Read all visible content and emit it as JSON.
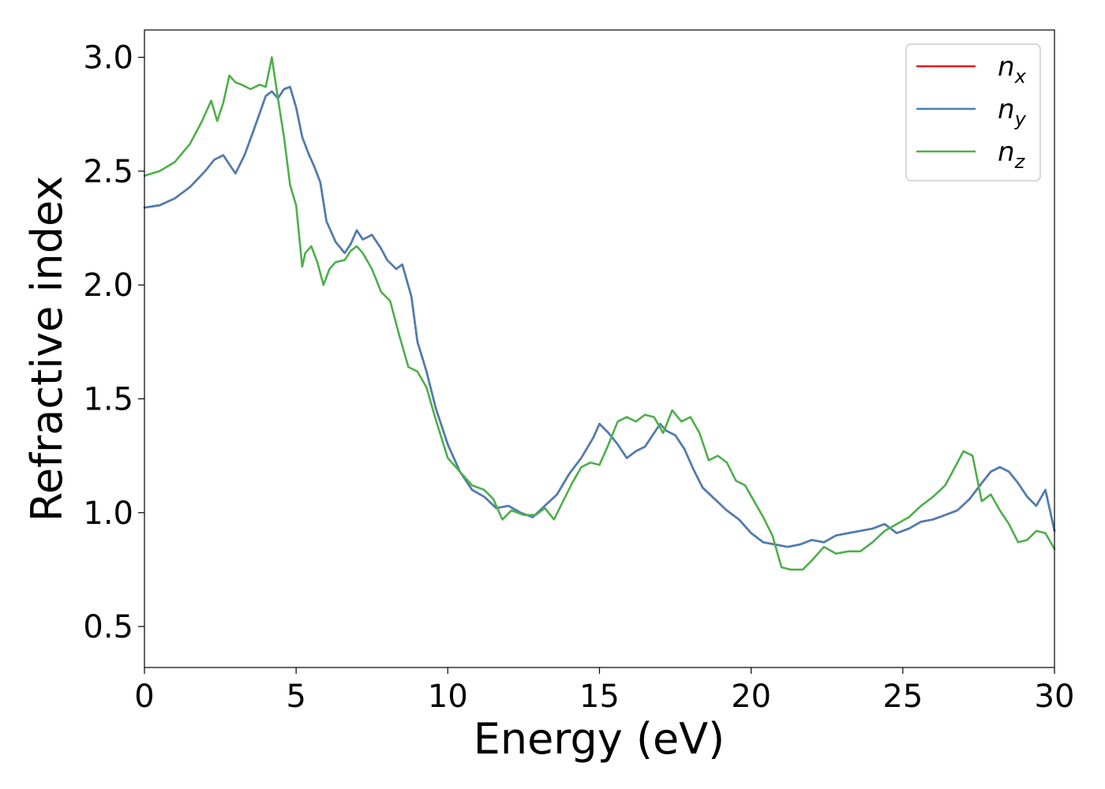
{
  "chart_data": {
    "type": "line",
    "xlabel": "Energy (eV)",
    "ylabel": "Refractive index",
    "xlim": [
      0,
      30
    ],
    "ylim": [
      0.32,
      3.12
    ],
    "xticks": [
      "0",
      "5",
      "10",
      "15",
      "20",
      "25",
      "30"
    ],
    "yticks": [
      "0.5",
      "1.0",
      "1.5",
      "2.0",
      "2.5",
      "3.0"
    ],
    "grid": false,
    "legend_position": "top-right",
    "series": [
      {
        "name": "n_x",
        "legend_base": "n",
        "legend_sub": "x",
        "color": "#e41a1c",
        "x": [
          0,
          0.5,
          1,
          1.5,
          2,
          2.3,
          2.6,
          2.8,
          3.0,
          3.3,
          3.6,
          4.0,
          4.2,
          4.4,
          4.6,
          4.8,
          5.0,
          5.2,
          5.4,
          5.6,
          5.8,
          6.0,
          6.3,
          6.6,
          6.8,
          7.0,
          7.2,
          7.5,
          7.8,
          8.0,
          8.3,
          8.5,
          8.8,
          9.0,
          9.3,
          9.6,
          10.0,
          10.4,
          10.8,
          11.2,
          11.6,
          12.0,
          12.4,
          12.8,
          13.2,
          13.6,
          14.0,
          14.4,
          14.8,
          15.0,
          15.3,
          15.6,
          15.9,
          16.2,
          16.5,
          16.8,
          17.0,
          17.2,
          17.5,
          17.8,
          18.1,
          18.4,
          18.8,
          19.2,
          19.6,
          20.0,
          20.4,
          20.8,
          21.2,
          21.6,
          22.0,
          22.4,
          22.8,
          23.2,
          23.6,
          24.0,
          24.4,
          24.8,
          25.2,
          25.6,
          26.0,
          26.4,
          26.8,
          27.2,
          27.6,
          27.9,
          28.2,
          28.5,
          28.8,
          29.1,
          29.4,
          29.7,
          30.0
        ],
        "y": [
          2.34,
          2.35,
          2.38,
          2.43,
          2.5,
          2.55,
          2.57,
          2.53,
          2.49,
          2.57,
          2.68,
          2.83,
          2.85,
          2.82,
          2.86,
          2.87,
          2.78,
          2.65,
          2.58,
          2.52,
          2.45,
          2.28,
          2.19,
          2.14,
          2.18,
          2.24,
          2.2,
          2.22,
          2.16,
          2.11,
          2.07,
          2.09,
          1.95,
          1.75,
          1.62,
          1.46,
          1.3,
          1.18,
          1.1,
          1.07,
          1.02,
          1.03,
          1.0,
          0.98,
          1.03,
          1.08,
          1.17,
          1.24,
          1.33,
          1.39,
          1.35,
          1.3,
          1.24,
          1.27,
          1.29,
          1.35,
          1.39,
          1.36,
          1.34,
          1.28,
          1.19,
          1.11,
          1.06,
          1.01,
          0.97,
          0.91,
          0.87,
          0.86,
          0.85,
          0.86,
          0.88,
          0.87,
          0.9,
          0.91,
          0.92,
          0.93,
          0.95,
          0.91,
          0.93,
          0.96,
          0.97,
          0.99,
          1.01,
          1.06,
          1.13,
          1.18,
          1.2,
          1.18,
          1.13,
          1.07,
          1.03,
          1.1,
          0.92
        ]
      },
      {
        "name": "n_y",
        "legend_base": "n",
        "legend_sub": "y",
        "color": "#4a7fb5",
        "x": [
          0,
          0.5,
          1,
          1.5,
          2,
          2.3,
          2.6,
          2.8,
          3.0,
          3.3,
          3.6,
          4.0,
          4.2,
          4.4,
          4.6,
          4.8,
          5.0,
          5.2,
          5.4,
          5.6,
          5.8,
          6.0,
          6.3,
          6.6,
          6.8,
          7.0,
          7.2,
          7.5,
          7.8,
          8.0,
          8.3,
          8.5,
          8.8,
          9.0,
          9.3,
          9.6,
          10.0,
          10.4,
          10.8,
          11.2,
          11.6,
          12.0,
          12.4,
          12.8,
          13.2,
          13.6,
          14.0,
          14.4,
          14.8,
          15.0,
          15.3,
          15.6,
          15.9,
          16.2,
          16.5,
          16.8,
          17.0,
          17.2,
          17.5,
          17.8,
          18.1,
          18.4,
          18.8,
          19.2,
          19.6,
          20.0,
          20.4,
          20.8,
          21.2,
          21.6,
          22.0,
          22.4,
          22.8,
          23.2,
          23.6,
          24.0,
          24.4,
          24.8,
          25.2,
          25.6,
          26.0,
          26.4,
          26.8,
          27.2,
          27.6,
          27.9,
          28.2,
          28.5,
          28.8,
          29.1,
          29.4,
          29.7,
          30.0
        ],
        "y": [
          2.34,
          2.35,
          2.38,
          2.43,
          2.5,
          2.55,
          2.57,
          2.53,
          2.49,
          2.57,
          2.68,
          2.83,
          2.85,
          2.82,
          2.86,
          2.87,
          2.78,
          2.65,
          2.58,
          2.52,
          2.45,
          2.28,
          2.19,
          2.14,
          2.18,
          2.24,
          2.2,
          2.22,
          2.16,
          2.11,
          2.07,
          2.09,
          1.95,
          1.75,
          1.62,
          1.46,
          1.3,
          1.18,
          1.1,
          1.07,
          1.02,
          1.03,
          1.0,
          0.98,
          1.03,
          1.08,
          1.17,
          1.24,
          1.33,
          1.39,
          1.35,
          1.3,
          1.24,
          1.27,
          1.29,
          1.35,
          1.39,
          1.36,
          1.34,
          1.28,
          1.19,
          1.11,
          1.06,
          1.01,
          0.97,
          0.91,
          0.87,
          0.86,
          0.85,
          0.86,
          0.88,
          0.87,
          0.9,
          0.91,
          0.92,
          0.93,
          0.95,
          0.91,
          0.93,
          0.96,
          0.97,
          0.99,
          1.01,
          1.06,
          1.13,
          1.18,
          1.2,
          1.18,
          1.13,
          1.07,
          1.03,
          1.1,
          0.92
        ]
      },
      {
        "name": "n_z",
        "legend_base": "n",
        "legend_sub": "z",
        "color": "#4daf4a",
        "x": [
          0,
          0.5,
          1,
          1.5,
          1.9,
          2.2,
          2.4,
          2.6,
          2.8,
          3.0,
          3.2,
          3.5,
          3.8,
          4.0,
          4.2,
          4.4,
          4.6,
          4.8,
          5.0,
          5.2,
          5.3,
          5.5,
          5.7,
          5.9,
          6.1,
          6.3,
          6.6,
          6.8,
          7.0,
          7.2,
          7.5,
          7.8,
          8.1,
          8.4,
          8.7,
          9.0,
          9.3,
          9.6,
          10.0,
          10.4,
          10.8,
          11.2,
          11.5,
          11.8,
          12.1,
          12.5,
          12.9,
          13.2,
          13.5,
          13.8,
          14.1,
          14.4,
          14.7,
          15.0,
          15.3,
          15.6,
          15.9,
          16.2,
          16.5,
          16.8,
          17.1,
          17.4,
          17.7,
          18.0,
          18.3,
          18.6,
          18.9,
          19.2,
          19.5,
          19.8,
          20.1,
          20.4,
          20.7,
          21.0,
          21.3,
          21.7,
          22.0,
          22.4,
          22.8,
          23.2,
          23.6,
          24.0,
          24.4,
          24.8,
          25.2,
          25.6,
          26.0,
          26.4,
          26.8,
          27.0,
          27.3,
          27.6,
          27.9,
          28.2,
          28.5,
          28.8,
          29.1,
          29.4,
          29.7,
          30.0
        ],
        "y": [
          2.48,
          2.5,
          2.54,
          2.62,
          2.72,
          2.81,
          2.72,
          2.8,
          2.92,
          2.89,
          2.88,
          2.86,
          2.88,
          2.87,
          3.0,
          2.82,
          2.65,
          2.44,
          2.35,
          2.08,
          2.14,
          2.17,
          2.1,
          2.0,
          2.07,
          2.1,
          2.11,
          2.15,
          2.17,
          2.14,
          2.07,
          1.97,
          1.93,
          1.78,
          1.64,
          1.62,
          1.55,
          1.41,
          1.24,
          1.18,
          1.12,
          1.1,
          1.06,
          0.97,
          1.01,
          0.99,
          0.99,
          1.02,
          0.97,
          1.05,
          1.13,
          1.2,
          1.22,
          1.21,
          1.3,
          1.4,
          1.42,
          1.4,
          1.43,
          1.42,
          1.35,
          1.45,
          1.4,
          1.42,
          1.35,
          1.23,
          1.25,
          1.22,
          1.14,
          1.12,
          1.05,
          0.98,
          0.9,
          0.76,
          0.75,
          0.75,
          0.79,
          0.85,
          0.82,
          0.83,
          0.83,
          0.87,
          0.92,
          0.95,
          0.98,
          1.03,
          1.07,
          1.12,
          1.22,
          1.27,
          1.25,
          1.05,
          1.08,
          1.01,
          0.95,
          0.87,
          0.88,
          0.92,
          0.91,
          0.84
        ]
      }
    ]
  }
}
